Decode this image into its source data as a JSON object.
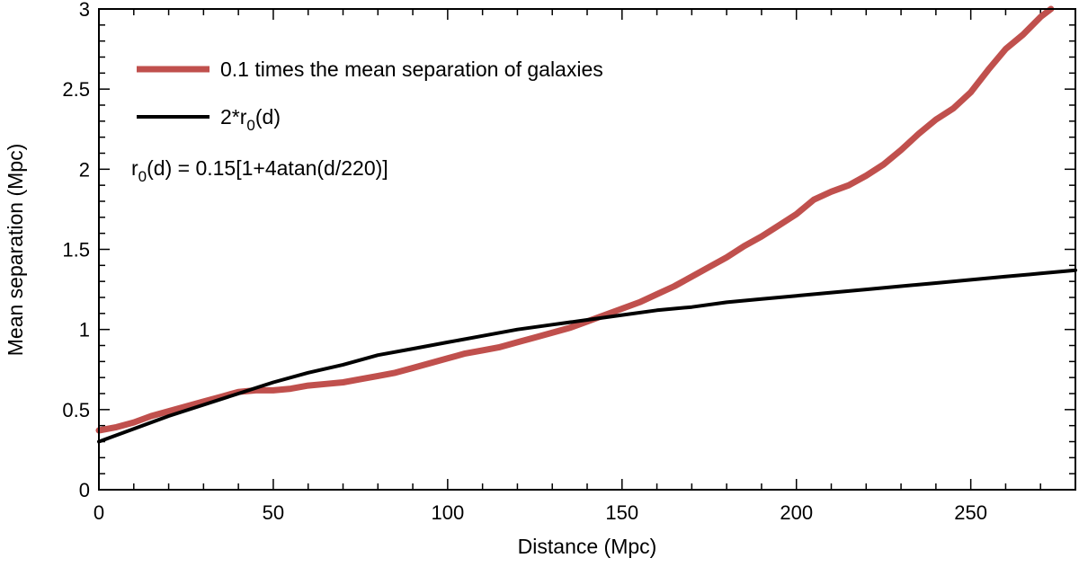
{
  "chart_data": {
    "type": "line",
    "title": "",
    "xlabel": "Distance (Mpc)",
    "ylabel": "Mean separation (Mpc)",
    "xlim": [
      0,
      280
    ],
    "ylim": [
      0,
      3
    ],
    "xticks": [
      0,
      50,
      100,
      150,
      200,
      250
    ],
    "xtick_labels": [
      "0",
      "50",
      "100",
      "150",
      "200",
      "250"
    ],
    "yticks": [
      0,
      0.5,
      1,
      1.5,
      2,
      2.5,
      3
    ],
    "ytick_labels": [
      "0",
      "0.5",
      "1",
      "1.5",
      "2",
      "2.5",
      "3"
    ],
    "grid": false,
    "legend_position": "top-left",
    "series": [
      {
        "name": "0.1 times the mean separation of galaxies",
        "color": "#c0504d",
        "x": [
          0,
          5,
          10,
          15,
          20,
          25,
          30,
          35,
          40,
          45,
          50,
          55,
          60,
          65,
          70,
          75,
          80,
          85,
          90,
          95,
          100,
          105,
          110,
          115,
          120,
          125,
          130,
          135,
          140,
          145,
          150,
          155,
          160,
          165,
          170,
          175,
          180,
          185,
          190,
          195,
          200,
          205,
          210,
          215,
          220,
          225,
          230,
          235,
          240,
          245,
          250,
          255,
          260,
          265,
          270,
          273
        ],
        "values": [
          0.37,
          0.39,
          0.42,
          0.46,
          0.49,
          0.52,
          0.55,
          0.58,
          0.61,
          0.62,
          0.62,
          0.63,
          0.65,
          0.66,
          0.67,
          0.69,
          0.71,
          0.73,
          0.76,
          0.79,
          0.82,
          0.85,
          0.87,
          0.89,
          0.92,
          0.95,
          0.98,
          1.01,
          1.05,
          1.09,
          1.13,
          1.17,
          1.22,
          1.27,
          1.33,
          1.39,
          1.45,
          1.52,
          1.58,
          1.65,
          1.72,
          1.81,
          1.86,
          1.9,
          1.96,
          2.03,
          2.12,
          2.22,
          2.31,
          2.38,
          2.48,
          2.62,
          2.75,
          2.84,
          2.95,
          3.0
        ]
      },
      {
        "name": "2*r",
        "name_sub": "0",
        "name_tail": "(d)",
        "color": "#000000",
        "x": [
          0,
          10,
          20,
          30,
          40,
          50,
          60,
          70,
          80,
          90,
          100,
          110,
          120,
          130,
          140,
          150,
          160,
          170,
          180,
          190,
          200,
          210,
          220,
          230,
          240,
          250,
          260,
          270,
          280
        ],
        "values": [
          0.3,
          0.38,
          0.46,
          0.53,
          0.6,
          0.67,
          0.73,
          0.78,
          0.84,
          0.88,
          0.92,
          0.96,
          1.0,
          1.03,
          1.06,
          1.09,
          1.12,
          1.14,
          1.17,
          1.19,
          1.21,
          1.23,
          1.25,
          1.27,
          1.29,
          1.31,
          1.33,
          1.35,
          1.37
        ]
      }
    ],
    "annotations": [
      {
        "text_prefix": "r",
        "text_sub": "0",
        "text_suffix": "(d) = 0.15[1+4atan(d/220)]"
      }
    ]
  }
}
